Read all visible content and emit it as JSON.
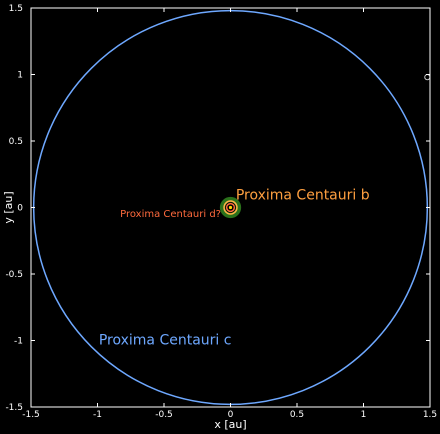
{
  "chart_data": {
    "type": "scatter",
    "xlabel": "x [au]",
    "ylabel": "y [au]",
    "xlim": [
      -1.5,
      1.5
    ],
    "ylim": [
      -1.5,
      1.5
    ],
    "x_ticks": [
      -1.5,
      -1,
      -0.5,
      0,
      0.5,
      1,
      1.5
    ],
    "x_tick_labels": [
      "-1.5",
      "-1",
      "-0.5",
      "0",
      "0.5",
      "1",
      "1.5"
    ],
    "y_ticks": [
      -1.5,
      -1,
      -0.5,
      0,
      0.5,
      1,
      1.5
    ],
    "y_tick_labels": [
      "-1.5",
      "-1",
      "-0.5",
      "0",
      "0.5",
      "1",
      "1.5"
    ],
    "grid": false,
    "habitable_zone": {
      "inner_au": 0.04,
      "outer_au": 0.08,
      "color": "#2f7d1e"
    },
    "orbits": [
      {
        "radius_au": 0.029,
        "color": "#ff6a3d"
      },
      {
        "radius_au": 0.0485,
        "color": "#ffb347"
      },
      {
        "radius_au": 1.48,
        "color": "#6ea8ff"
      }
    ],
    "star": {
      "x": 0,
      "y": 0,
      "color": "#ffd700"
    },
    "planets": [
      {
        "x": 1.48,
        "y": 0.98,
        "color": "#cccccc"
      }
    ],
    "annotations": [
      {
        "text": "Proxima Centauri b",
        "x": 0.04,
        "y": 0.06,
        "color": "#ffa040",
        "size": 14
      },
      {
        "text": "Proxima Centauri d?",
        "x": -0.83,
        "y": -0.07,
        "color": "#ff6a3d",
        "size": 10
      },
      {
        "text": "Proxima Centauri c",
        "x": -0.99,
        "y": -1.03,
        "color": "#6ea8ff",
        "size": 14
      }
    ],
    "background": "#000000",
    "axis_color": "#ffffff"
  }
}
